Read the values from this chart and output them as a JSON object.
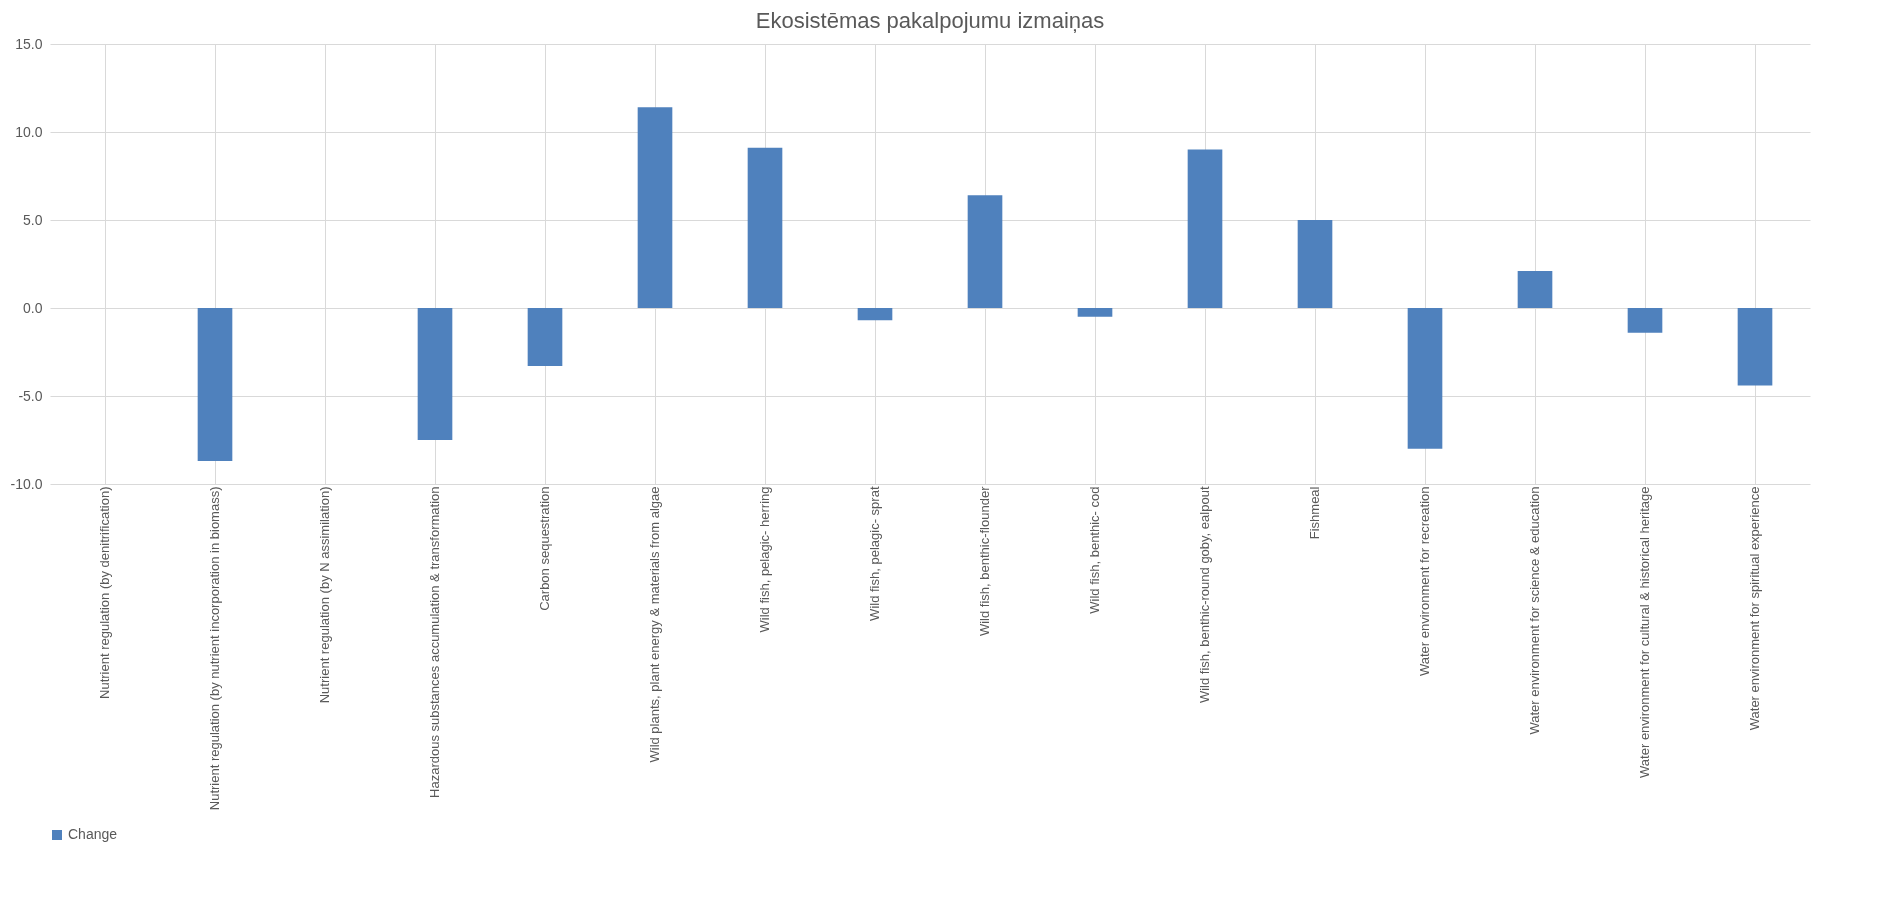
{
  "chart_data": {
    "type": "bar",
    "title": "Ekosistēmas pakalpojumu izmaiņas",
    "categories": [
      "Nutrient regulation (by denitrification)",
      "Nutrient regulation (by nutrient incorporation in biomass)",
      "Nutrient regulation (by N assimilation)",
      "Hazardous substances accumulation & transformation",
      "Carbon sequestration",
      "Wild plants, plant energy & materials from algae",
      "Wild fish, pelagic- herring",
      "Wild fish, pelagic- sprat",
      "Wild fish, benthic-flounder",
      "Wild fish, benthic- cod",
      "Wild fish, benthic-round goby, ealpout",
      "Fishmeal",
      "Water environment for recreation",
      "Water environment for science & education",
      "Water environment for cultural & historical heritage",
      "Water environment for spiritual experience"
    ],
    "series": [
      {
        "name": "Change",
        "color": "#4f81bd",
        "values": [
          0,
          -8.7,
          0,
          -7.5,
          -3.3,
          11.4,
          9.1,
          -0.7,
          6.4,
          -0.5,
          9.0,
          5.0,
          -8.0,
          2.1,
          -1.4,
          -4.4
        ]
      }
    ],
    "ylim": [
      -10,
      15
    ],
    "yticks": [
      {
        "value": -10,
        "label": "-10.0"
      },
      {
        "value": -5,
        "label": "-5.0"
      },
      {
        "value": 0,
        "label": "0.0"
      },
      {
        "value": 5,
        "label": "5.0"
      },
      {
        "value": 10,
        "label": "10.0"
      },
      {
        "value": 15,
        "label": "15.0"
      }
    ],
    "grid": true,
    "legend": "bottom"
  }
}
